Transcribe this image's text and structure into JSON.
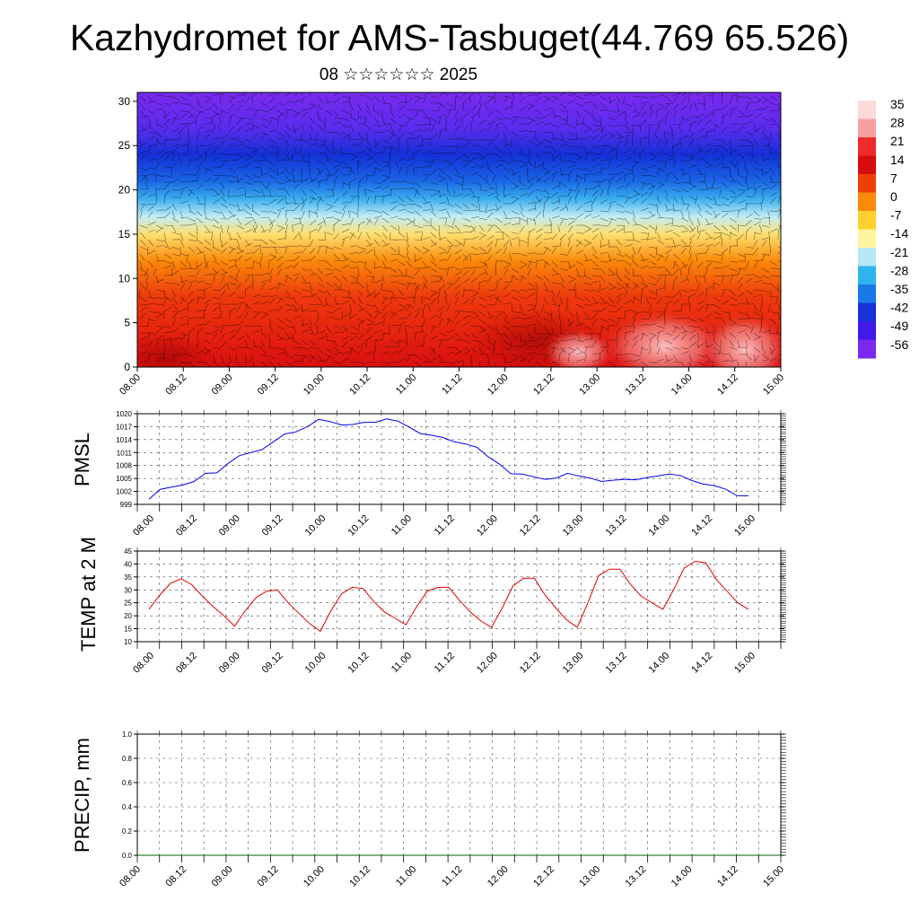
{
  "title": "Kazhydromet for AMS-Tasbuget(44.769 65.526)",
  "subtitle": "08 ☆☆☆☆☆☆ 2025",
  "time_labels": [
    "08.00",
    "08.12",
    "09.00",
    "09.12",
    "10.00",
    "10.12",
    "11.00",
    "11.12",
    "12.00",
    "12.12",
    "13.00",
    "13.12",
    "14.00",
    "14.12",
    "15.00"
  ],
  "colorbar": {
    "labels": [
      "35",
      "28",
      "21",
      "14",
      "7",
      "0",
      "-7",
      "-14",
      "-21",
      "-28",
      "-35",
      "-42",
      "-49",
      "-56"
    ],
    "colors": [
      "#ffd9d9",
      "#f7a0a0",
      "#ee2a2a",
      "#d80c0c",
      "#f04008",
      "#fc8a0a",
      "#ffd030",
      "#fff5a0",
      "#b8e6f5",
      "#2eb4ee",
      "#1a78e8",
      "#1433d8",
      "#3f1ae8",
      "#7a2aee"
    ]
  },
  "chart_data": [
    {
      "type": "heatmap",
      "name": "cross-section",
      "x": [
        "08.00",
        "08.12",
        "09.00",
        "09.12",
        "10.00",
        "10.12",
        "11.00",
        "11.12",
        "12.00",
        "12.12",
        "13.00",
        "13.12",
        "14.00",
        "14.12",
        "15.00"
      ],
      "ylim": [
        0,
        31
      ],
      "yticks": [
        "0",
        "5",
        "10",
        "15",
        "20",
        "25",
        "30"
      ],
      "band_colors": [
        {
          "y": 0,
          "color": "#d81010"
        },
        {
          "y": 3,
          "color": "#e41e10"
        },
        {
          "y": 8,
          "color": "#ee3a0c"
        },
        {
          "y": 12,
          "color": "#fa8a0a"
        },
        {
          "y": 15,
          "color": "#ffe070"
        },
        {
          "y": 17,
          "color": "#c2ecf6"
        },
        {
          "y": 19,
          "color": "#3aaeee"
        },
        {
          "y": 21,
          "color": "#1a66e6"
        },
        {
          "y": 24,
          "color": "#1430d6"
        },
        {
          "y": 27,
          "color": "#5a2cee"
        },
        {
          "y": 31,
          "color": "#7a2aee"
        }
      ]
    },
    {
      "type": "line",
      "ylabel": "PMSL",
      "ylim": [
        999,
        1020
      ],
      "yticks": [
        "999",
        "1002",
        "1005",
        "1008",
        "1011",
        "1014",
        "1017",
        "1020"
      ],
      "xticks": [
        "08.00",
        "08.12",
        "09.00",
        "09.12",
        "10.00",
        "10.12",
        "11.00",
        "11.12",
        "12.00",
        "12.12",
        "13.00",
        "13.12",
        "14.00",
        "14.12",
        "15.00"
      ],
      "series": [
        {
          "color": "#0000ee",
          "values": [
            1000.2,
            1002.5,
            1003.0,
            1003.5,
            1004.3,
            1006.2,
            1006.3,
            1008.5,
            1010.3,
            1011.0,
            1011.7,
            1013.5,
            1015.3,
            1015.8,
            1017.0,
            1018.7,
            1018.2,
            1017.4,
            1017.5,
            1018.0,
            1018.0,
            1018.8,
            1018.3,
            1016.9,
            1015.4,
            1015.0,
            1014.5,
            1013.5,
            1013.0,
            1012.2,
            1010.0,
            1008.3,
            1006.1,
            1006.0,
            1005.4,
            1004.8,
            1005.1,
            1006.2,
            1005.6,
            1005.1,
            1004.3,
            1004.6,
            1004.8,
            1004.7,
            1005.2,
            1005.6,
            1006.0,
            1005.7,
            1004.5,
            1003.7,
            1003.3,
            1002.5,
            1001.0,
            1001.0
          ]
        }
      ]
    },
    {
      "type": "line",
      "ylabel": "TEMP at 2 M",
      "ylim": [
        10,
        45
      ],
      "yticks": [
        "10",
        "15",
        "20",
        "25",
        "30",
        "35",
        "40",
        "45"
      ],
      "xticks": [
        "08.00",
        "08.12",
        "09.00",
        "09.12",
        "10.00",
        "10.12",
        "11.00",
        "11.12",
        "12.00",
        "12.12",
        "13.00",
        "13.12",
        "14.00",
        "14.12",
        "15.00"
      ],
      "series": [
        {
          "color": "#dd0000",
          "values": [
            22.5,
            28.0,
            32.5,
            34.3,
            32.0,
            27.5,
            23.5,
            20.0,
            16.0,
            22.0,
            27.0,
            29.5,
            30.0,
            25.0,
            21.0,
            17.0,
            14.0,
            22.0,
            28.5,
            31.0,
            30.5,
            25.5,
            21.5,
            19.0,
            16.5,
            23.5,
            29.5,
            31.0,
            31.0,
            26.0,
            21.5,
            18.0,
            15.5,
            23.0,
            31.5,
            34.5,
            34.5,
            28.0,
            23.0,
            18.5,
            15.5,
            25.0,
            35.5,
            38.0,
            38.0,
            32.0,
            27.5,
            25.0,
            22.5,
            30.0,
            38.5,
            41.0,
            40.5,
            34.0,
            29.5,
            25.0,
            22.5
          ]
        }
      ]
    },
    {
      "type": "line",
      "ylabel": "PRECIP, mm",
      "ylim": [
        0,
        1
      ],
      "yticks": [
        "0.0",
        "0.2",
        "0.4",
        "0.6",
        "0.8",
        "1.0"
      ],
      "xticks": [
        "08.00",
        "08.12",
        "09.00",
        "09.12",
        "10.00",
        "10.12",
        "11.00",
        "11.12",
        "12.00",
        "12.12",
        "13.00",
        "13.12",
        "14.00",
        "14.12",
        "15.00"
      ],
      "series": [
        {
          "color": "#006400",
          "values": [
            0,
            0,
            0,
            0,
            0,
            0,
            0,
            0,
            0,
            0,
            0,
            0,
            0,
            0,
            0
          ]
        }
      ]
    }
  ]
}
